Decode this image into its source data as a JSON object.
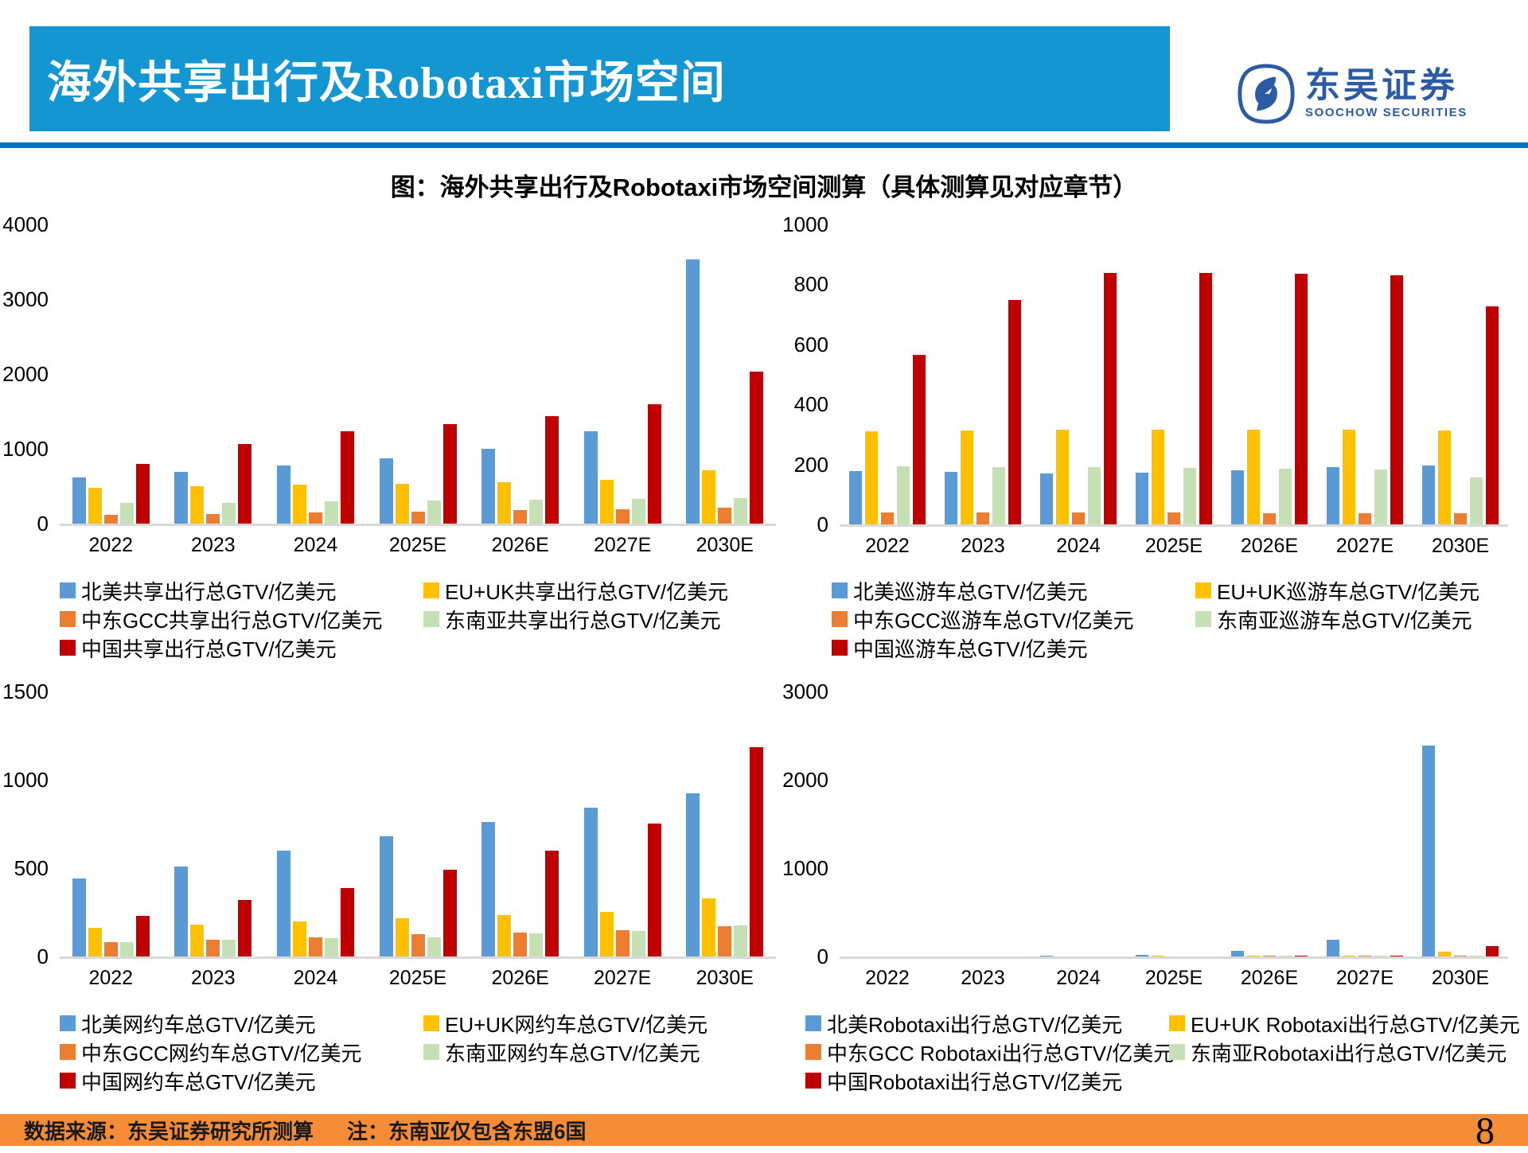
{
  "header": {
    "title_prefix": "海外共享出行及",
    "title_latin": "Robotaxi",
    "title_suffix": "市场空间",
    "logo": {
      "name": "东吴证券",
      "sub": "SOOCHOW SECURITIES"
    }
  },
  "figure_title": "图：海外共享出行及Robotaxi市场空间测算（具体测算见对应章节）",
  "footer": {
    "source": "数据来源：东吴证券研究所测算",
    "note": "注：东南亚仅包含东盟6国",
    "page": "8"
  },
  "colors": {
    "banner_blue": "#1496D2",
    "rule_blue": "#0072C6",
    "logo_blue": "#2B5BA4",
    "footer_orange": "#F68C36",
    "baseline_gray": "#D9D9D9",
    "series_blue": "#5B9BD5",
    "series_yellow": "#FFC000",
    "series_orange": "#ED7D31",
    "series_green": "#C5E0B4",
    "series_red": "#C00000"
  },
  "chart_data": [
    {
      "type": "bar",
      "title": "海外共享出行总GTV",
      "categories": [
        "2022",
        "2023",
        "2024",
        "2025E",
        "2026E",
        "2027E",
        "2030E"
      ],
      "ylim": [
        0,
        4000
      ],
      "yticks": [
        0,
        1000,
        2000,
        3000,
        4000
      ],
      "grid": false,
      "legend_position": "bottom",
      "series": [
        {
          "name": "北美共享出行总GTV/亿美元",
          "color": "#5B9BD5",
          "values": [
            615,
            690,
            780,
            870,
            1005,
            1230,
            3530
          ]
        },
        {
          "name": "EU+UK共享出行总GTV/亿美元",
          "color": "#FFC000",
          "values": [
            480,
            495,
            520,
            535,
            555,
            580,
            710
          ]
        },
        {
          "name": "中东GCC共享出行总GTV/亿美元",
          "color": "#ED7D31",
          "values": [
            113,
            131,
            152,
            163,
            177,
            188,
            213
          ]
        },
        {
          "name": "东南亚共享出行总GTV/亿美元",
          "color": "#C5E0B4",
          "values": [
            277,
            282,
            295,
            305,
            315,
            326,
            337
          ]
        },
        {
          "name": "中国共享出行总GTV/亿美元",
          "color": "#C00000",
          "values": [
            798,
            1065,
            1230,
            1330,
            1435,
            1595,
            2028
          ]
        }
      ]
    },
    {
      "type": "bar",
      "title": "巡游车总GTV",
      "categories": [
        "2022",
        "2023",
        "2024",
        "2025E",
        "2026E",
        "2027E",
        "2030E"
      ],
      "ylim": [
        0,
        1000
      ],
      "yticks": [
        0,
        200,
        400,
        600,
        800,
        1000
      ],
      "grid": false,
      "legend_position": "bottom",
      "series": [
        {
          "name": "北美巡游车总GTV/亿美元",
          "color": "#5B9BD5",
          "values": [
            178,
            176,
            170,
            172,
            180,
            190,
            196
          ]
        },
        {
          "name": "EU+UK巡游车总GTV/亿美元",
          "color": "#FFC000",
          "values": [
            310,
            313,
            316,
            316,
            316,
            316,
            313
          ]
        },
        {
          "name": "中东GCC巡游车总GTV/亿美元",
          "color": "#ED7D31",
          "values": [
            41,
            41,
            40,
            39,
            37,
            36,
            38
          ]
        },
        {
          "name": "东南亚巡游车总GTV/亿美元",
          "color": "#C5E0B4",
          "values": [
            194,
            190,
            192,
            188,
            186,
            183,
            157
          ]
        },
        {
          "name": "中国巡游车总GTV/亿美元",
          "color": "#C00000",
          "values": [
            565,
            748,
            838,
            838,
            835,
            830,
            728
          ]
        }
      ]
    },
    {
      "type": "bar",
      "title": "网约车总GTV",
      "categories": [
        "2022",
        "2023",
        "2024",
        "2025E",
        "2026E",
        "2027E",
        "2030E"
      ],
      "ylim": [
        0,
        1500
      ],
      "yticks": [
        0,
        500,
        1000,
        1500
      ],
      "grid": false,
      "legend_position": "bottom",
      "series": [
        {
          "name": "北美网约车总GTV/亿美元",
          "color": "#5B9BD5",
          "values": [
            440,
            510,
            600,
            678,
            760,
            841,
            925
          ]
        },
        {
          "name": "EU+UK网约车总GTV/亿美元",
          "color": "#FFC000",
          "values": [
            162,
            181,
            199,
            217,
            236,
            254,
            331
          ]
        },
        {
          "name": "中东GCC网约车总GTV/亿美元",
          "color": "#ED7D31",
          "values": [
            79,
            94,
            109,
            127,
            136,
            150,
            169
          ]
        },
        {
          "name": "东南亚网约车总GTV/亿美元",
          "color": "#C5E0B4",
          "values": [
            82,
            94,
            105,
            108,
            129,
            144,
            174
          ]
        },
        {
          "name": "中国网约车总GTV/亿美元",
          "color": "#C00000",
          "values": [
            232,
            319,
            389,
            492,
            599,
            751,
            1183
          ]
        }
      ]
    },
    {
      "type": "bar",
      "title": "Robotaxi出行总GTV",
      "categories": [
        "2022",
        "2023",
        "2024",
        "2025E",
        "2026E",
        "2027E",
        "2030E"
      ],
      "ylim": [
        0,
        3000
      ],
      "yticks": [
        0,
        1000,
        2000,
        3000
      ],
      "grid": false,
      "legend_position": "bottom",
      "series": [
        {
          "name": "北美Robotaxi出行总GTV/亿美元",
          "color": "#5B9BD5",
          "values": [
            0,
            0,
            12,
            21,
            63,
            192,
            2390
          ]
        },
        {
          "name": "EU+UK Robotaxi出行总GTV/亿美元",
          "color": "#FFC000",
          "values": [
            0,
            0,
            0,
            2,
            5,
            12,
            50
          ]
        },
        {
          "name": "中东GCC Robotaxi出行总GTV/亿美元",
          "color": "#ED7D31",
          "values": [
            0,
            0,
            0,
            0,
            1,
            3,
            8
          ]
        },
        {
          "name": "东南亚Robotaxi出行总GTV/亿美元",
          "color": "#C5E0B4",
          "values": [
            0,
            0,
            0,
            0,
            1,
            3,
            10
          ]
        },
        {
          "name": "中国Robotaxi出行总GTV/亿美元",
          "color": "#C00000",
          "values": [
            0,
            0,
            0,
            0,
            2,
            10,
            115
          ]
        }
      ]
    }
  ]
}
